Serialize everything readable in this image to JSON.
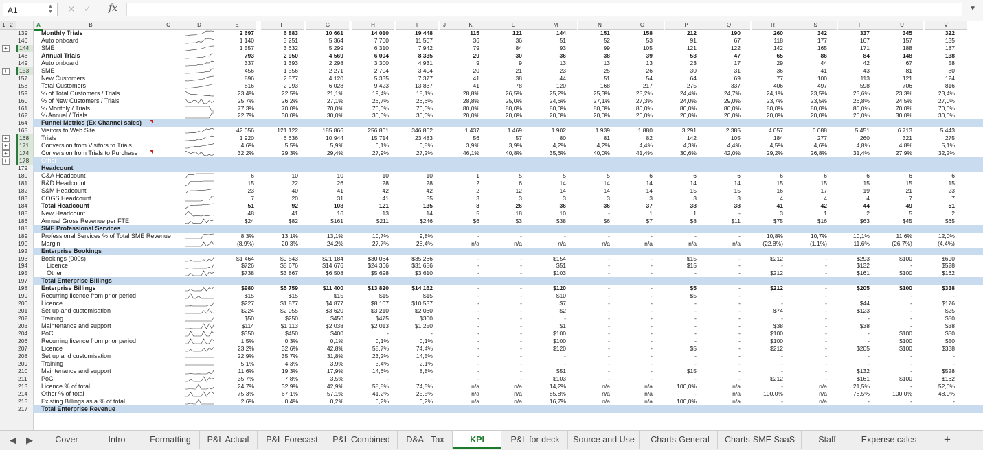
{
  "formula_bar": {
    "cell_ref": "A1",
    "fx": "fx",
    "value": ""
  },
  "outline_levels": [
    "1",
    "2"
  ],
  "columns": [
    "A",
    "B",
    "C",
    "D",
    "E",
    "F",
    "G",
    "H",
    "I",
    "J",
    "K",
    "L",
    "M",
    "N",
    "O",
    "P",
    "Q",
    "R",
    "S",
    "T",
    "U",
    "V"
  ],
  "rows": [
    {
      "n": "139",
      "label": "Monthly Trials",
      "style": "bold",
      "vals": [
        "2 697",
        "6 883",
        "10 661",
        "14 010",
        "19 448",
        "115",
        "121",
        "144",
        "151",
        "158",
        "212",
        "190",
        "260",
        "342",
        "337",
        "345",
        "322"
      ]
    },
    {
      "n": "140",
      "label": "Auto onboard",
      "vals": [
        "1 140",
        "3 251",
        "5 364",
        "7 700",
        "11 507",
        "36",
        "36",
        "51",
        "52",
        "53",
        "91",
        "67",
        "118",
        "177",
        "167",
        "157",
        "135"
      ]
    },
    {
      "n": "144",
      "label": "SME",
      "sel": true,
      "vals": [
        "1 557",
        "3 632",
        "5 299",
        "6 310",
        "7 942",
        "79",
        "84",
        "93",
        "99",
        "105",
        "121",
        "122",
        "142",
        "165",
        "171",
        "188",
        "187"
      ]
    },
    {
      "n": "148",
      "label": "Annual Trials",
      "style": "bold",
      "vals": [
        "793",
        "2 950",
        "4 569",
        "6 004",
        "8 335",
        "29",
        "30",
        "36",
        "38",
        "39",
        "53",
        "47",
        "65",
        "86",
        "84",
        "148",
        "138"
      ]
    },
    {
      "n": "149",
      "label": "Auto onboard",
      "vals": [
        "337",
        "1 393",
        "2 298",
        "3 300",
        "4 931",
        "9",
        "9",
        "13",
        "13",
        "13",
        "23",
        "17",
        "29",
        "44",
        "42",
        "67",
        "58"
      ]
    },
    {
      "n": "153",
      "label": "SME",
      "sel": true,
      "vals": [
        "456",
        "1 556",
        "2 271",
        "2 704",
        "3 404",
        "20",
        "21",
        "23",
        "25",
        "26",
        "30",
        "31",
        "36",
        "41",
        "43",
        "81",
        "80"
      ]
    },
    {
      "n": "157",
      "label": "New Customers",
      "vals": [
        "896",
        "2 577",
        "4 120",
        "5 335",
        "7 377",
        "41",
        "38",
        "44",
        "51",
        "54",
        "64",
        "69",
        "77",
        "100",
        "113",
        "121",
        "124"
      ]
    },
    {
      "n": "158",
      "label": "Total Customers",
      "vals": [
        "816",
        "2 993",
        "6 028",
        "9 423",
        "13 837",
        "41",
        "78",
        "120",
        "168",
        "217",
        "275",
        "337",
        "406",
        "497",
        "598",
        "706",
        "816"
      ]
    },
    {
      "n": "159",
      "label": "% of Total Customers / Trials",
      "vals": [
        "23,4%",
        "22,5%",
        "21,1%",
        "19,4%",
        "18,1%",
        "28,8%",
        "26,5%",
        "25,2%",
        "25,3%",
        "25,2%",
        "24,4%",
        "24,7%",
        "24,1%",
        "23,5%",
        "23,6%",
        "23,3%",
        "23,4%"
      ]
    },
    {
      "n": "160",
      "label": "% of New Customers / Trials",
      "vals": [
        "25,7%",
        "26,2%",
        "27,1%",
        "26,7%",
        "26,6%",
        "28,8%",
        "25,0%",
        "24,6%",
        "27,1%",
        "27,3%",
        "24,0%",
        "29,0%",
        "23,7%",
        "23,5%",
        "26,8%",
        "24,5%",
        "27,0%"
      ]
    },
    {
      "n": "161",
      "label": "% Monthly / Trials",
      "vals": [
        "77,3%",
        "70,0%",
        "70,0%",
        "70,0%",
        "70,0%",
        "80,0%",
        "80,0%",
        "80,0%",
        "80,0%",
        "80,0%",
        "80,0%",
        "80,0%",
        "80,0%",
        "80,0%",
        "80,0%",
        "70,0%",
        "70,0%"
      ]
    },
    {
      "n": "162",
      "label": "% Annual / Trials",
      "vals": [
        "22,7%",
        "30,0%",
        "30,0%",
        "30,0%",
        "30,0%",
        "20,0%",
        "20,0%",
        "20,0%",
        "20,0%",
        "20,0%",
        "20,0%",
        "20,0%",
        "20,0%",
        "20,0%",
        "20,0%",
        "30,0%",
        "30,0%"
      ]
    },
    {
      "n": "164",
      "label": "Funnel Metrics (Ex Channel sales)",
      "style": "hdr",
      "tri": true,
      "vals": []
    },
    {
      "n": "165",
      "label": "Visitors to Web Site",
      "vals": [
        "42 056",
        "121 122",
        "185 866",
        "256 801",
        "346 862",
        "1 437",
        "1 469",
        "1 902",
        "1 939",
        "1 880",
        "3 291",
        "2 385",
        "4 057",
        "6 088",
        "5 451",
        "6 713",
        "5 443"
      ]
    },
    {
      "n": "168",
      "label": "Trials",
      "sel": true,
      "vals": [
        "1 920",
        "6 636",
        "10 944",
        "15 714",
        "23 483",
        "56",
        "57",
        "80",
        "81",
        "82",
        "142",
        "105",
        "184",
        "277",
        "260",
        "321",
        "275"
      ]
    },
    {
      "n": "171",
      "label": "Conversion from Visitors to Trials",
      "sel": true,
      "vals": [
        "4,6%",
        "5,5%",
        "5,9%",
        "6,1%",
        "6,8%",
        "3,9%",
        "3,9%",
        "4,2%",
        "4,2%",
        "4,4%",
        "4,3%",
        "4,4%",
        "4,5%",
        "4,6%",
        "4,8%",
        "4,8%",
        "5,1%"
      ]
    },
    {
      "n": "174",
      "label": "Conversion from Trials to Purchase",
      "sel": true,
      "tri": true,
      "vals": [
        "32,2%",
        "29,3%",
        "29,4%",
        "27,9%",
        "27,2%",
        "46,1%",
        "40,8%",
        "35,6%",
        "40,0%",
        "41,4%",
        "30,6%",
        "42,0%",
        "29,2%",
        "26,8%",
        "31,4%",
        "27,9%",
        "32,2%"
      ]
    },
    {
      "n": "178",
      "label": "Other",
      "style": "sub",
      "sel": true,
      "vals": []
    },
    {
      "n": "179",
      "label": "Headcount",
      "style": "hdr",
      "vals": []
    },
    {
      "n": "180",
      "label": "G&A Headcount",
      "vals": [
        "6",
        "10",
        "10",
        "10",
        "10",
        "1",
        "5",
        "5",
        "5",
        "6",
        "6",
        "6",
        "6",
        "6",
        "6",
        "6",
        "6"
      ]
    },
    {
      "n": "181",
      "label": "R&D Headcount",
      "vals": [
        "15",
        "22",
        "26",
        "28",
        "28",
        "2",
        "6",
        "14",
        "14",
        "14",
        "14",
        "14",
        "15",
        "15",
        "15",
        "15",
        "15"
      ]
    },
    {
      "n": "182",
      "label": "S&M Headcount",
      "vals": [
        "23",
        "40",
        "41",
        "42",
        "42",
        "2",
        "12",
        "14",
        "14",
        "14",
        "15",
        "15",
        "16",
        "17",
        "19",
        "21",
        "23"
      ]
    },
    {
      "n": "183",
      "label": "COGS Headcount",
      "vals": [
        "7",
        "20",
        "31",
        "41",
        "55",
        "3",
        "3",
        "3",
        "3",
        "3",
        "3",
        "3",
        "4",
        "4",
        "4",
        "7",
        "7"
      ]
    },
    {
      "n": "184",
      "label": "Total Headcount",
      "style": "bold",
      "vals": [
        "51",
        "92",
        "108",
        "121",
        "135",
        "8",
        "26",
        "36",
        "36",
        "37",
        "38",
        "38",
        "41",
        "42",
        "44",
        "49",
        "51"
      ]
    },
    {
      "n": "185",
      "label": "New Headcount",
      "vals": [
        "48",
        "41",
        "16",
        "13",
        "14",
        "5",
        "18",
        "10",
        "-",
        "1",
        "1",
        "-",
        "3",
        "1",
        "2",
        "5",
        "2"
      ]
    },
    {
      "n": "186",
      "label": "Annual Gross Revenue per FTE",
      "vals": [
        "$24",
        "$82",
        "$161",
        "$211",
        "$246",
        "$6",
        "$3",
        "$38",
        "$6",
        "$7",
        "$8",
        "$11",
        "$75",
        "$16",
        "$63",
        "$45",
        "$65"
      ]
    },
    {
      "n": "188",
      "label": "SME Professional Services",
      "style": "hdr",
      "vals": []
    },
    {
      "n": "189",
      "label": "Professional Services % of Total SME Revenue",
      "vals": [
        "8,3%",
        "13,1%",
        "13,1%",
        "10,7%",
        "9,8%",
        "-",
        "-",
        "-",
        "-",
        "-",
        "-",
        "-",
        "10,8%",
        "10,7%",
        "10,1%",
        "11,6%",
        "12,0%"
      ]
    },
    {
      "n": "190",
      "label": "Margin",
      "vals": [
        "(8,9%)",
        "20,3%",
        "24,2%",
        "27,7%",
        "28,4%",
        "n/a",
        "n/a",
        "n/a",
        "n/a",
        "n/a",
        "n/a",
        "n/a",
        "(22,8%)",
        "(1,1%)",
        "11,6%",
        "(26,7%)",
        "(4,4%)"
      ]
    },
    {
      "n": "192",
      "label": "Enterprise Bookings",
      "style": "hdr",
      "vals": []
    },
    {
      "n": "193",
      "label": "Bookings (000s)",
      "vals": [
        "$1 464",
        "$9 543",
        "$21 184",
        "$30 064",
        "$35 266",
        "-",
        "-",
        "$154",
        "-",
        "-",
        "$15",
        "-",
        "$212",
        "-",
        "$293",
        "$100",
        "$690"
      ]
    },
    {
      "n": "194",
      "label": "Licence",
      "ind": true,
      "vals": [
        "$726",
        "$5 676",
        "$14 676",
        "$24 366",
        "$31 656",
        "-",
        "-",
        "$51",
        "-",
        "-",
        "$15",
        "-",
        "-",
        "-",
        "$132",
        "-",
        "$528"
      ]
    },
    {
      "n": "195",
      "label": "Other",
      "ind": true,
      "vals": [
        "$738",
        "$3 867",
        "$6 508",
        "$5 698",
        "$3 610",
        "-",
        "-",
        "$103",
        "-",
        "-",
        "-",
        "-",
        "$212",
        "-",
        "$161",
        "$100",
        "$162"
      ]
    },
    {
      "n": "197",
      "label": "Total Enterprise Billings",
      "style": "hdr",
      "vals": []
    },
    {
      "n": "198",
      "label": "Enterprise Billings",
      "style": "bold",
      "vals": [
        "$980",
        "$5 759",
        "$11 400",
        "$13 820",
        "$14 162",
        "-",
        "-",
        "$120",
        "-",
        "-",
        "$5",
        "-",
        "$212",
        "-",
        "$205",
        "$100",
        "$338"
      ]
    },
    {
      "n": "199",
      "label": "Recurring licence from prior period",
      "vals": [
        "$15",
        "$15",
        "$15",
        "$15",
        "$15",
        "-",
        "-",
        "$10",
        "-",
        "-",
        "$5",
        "-",
        "-",
        "-",
        "-",
        "-",
        "-"
      ]
    },
    {
      "n": "200",
      "label": "Licence",
      "vals": [
        "$227",
        "$1 877",
        "$4 877",
        "$8 107",
        "$10 537",
        "-",
        "-",
        "$7",
        "-",
        "-",
        "-",
        "-",
        "-",
        "-",
        "$44",
        "-",
        "$176"
      ]
    },
    {
      "n": "201",
      "label": "Set up and customisation",
      "vals": [
        "$224",
        "$2 055",
        "$3 620",
        "$3 210",
        "$2 060",
        "-",
        "-",
        "$2",
        "-",
        "-",
        "-",
        "-",
        "$74",
        "-",
        "$123",
        "-",
        "$25"
      ]
    },
    {
      "n": "202",
      "label": "Training",
      "vals": [
        "$50",
        "$250",
        "$450",
        "$475",
        "$300",
        "-",
        "-",
        "-",
        "-",
        "-",
        "-",
        "-",
        "-",
        "-",
        "-",
        "-",
        "$50"
      ]
    },
    {
      "n": "203",
      "label": "Maintenance and support",
      "vals": [
        "$114",
        "$1 113",
        "$2 038",
        "$2 013",
        "$1 250",
        "-",
        "-",
        "$1",
        "-",
        "-",
        "-",
        "-",
        "$38",
        "-",
        "$38",
        "-",
        "$38"
      ]
    },
    {
      "n": "204",
      "label": "PoC",
      "vals": [
        "$350",
        "$450",
        "$400",
        "-",
        "-",
        "-",
        "-",
        "$100",
        "-",
        "-",
        "-",
        "-",
        "$100",
        "-",
        "-",
        "$100",
        "$50"
      ]
    },
    {
      "n": "206",
      "label": "Recurring licence from prior period",
      "vals": [
        "1,5%",
        "0,3%",
        "0,1%",
        "0,1%",
        "0,1%",
        "-",
        "-",
        "$100",
        "-",
        "-",
        "-",
        "-",
        "$100",
        "-",
        "-",
        "$100",
        "$50"
      ]
    },
    {
      "n": "207",
      "label": "Licence",
      "vals": [
        "23,2%",
        "32,6%",
        "42,8%",
        "58,7%",
        "74,4%",
        "-",
        "-",
        "$120",
        "-",
        "-",
        "$5",
        "-",
        "$212",
        "-",
        "$205",
        "$100",
        "$338"
      ]
    },
    {
      "n": "208",
      "label": "Set up and customisation",
      "vals": [
        "22,9%",
        "35,7%",
        "31,8%",
        "23,2%",
        "14,5%",
        "-",
        "-",
        "-",
        "-",
        "-",
        "-",
        "-",
        "-",
        "-",
        "-",
        "-",
        "-"
      ]
    },
    {
      "n": "209",
      "label": "Training",
      "vals": [
        "5,1%",
        "4,3%",
        "3,9%",
        "3,4%",
        "2,1%",
        "-",
        "-",
        "-",
        "-",
        "-",
        "-",
        "-",
        "-",
        "-",
        "-",
        "-",
        "-"
      ]
    },
    {
      "n": "210",
      "label": "Maintenance and support",
      "vals": [
        "11,6%",
        "19,3%",
        "17,9%",
        "14,6%",
        "8,8%",
        "-",
        "-",
        "$51",
        "-",
        "-",
        "$15",
        "-",
        "-",
        "-",
        "$132",
        "-",
        "$528"
      ]
    },
    {
      "n": "211",
      "label": "PoC",
      "vals": [
        "35,7%",
        "7,8%",
        "3,5%",
        "-",
        "-",
        "-",
        "-",
        "$103",
        "-",
        "-",
        "-",
        "-",
        "$212",
        "-",
        "$161",
        "$100",
        "$162"
      ]
    },
    {
      "n": "213",
      "label": "Licence % of total",
      "vals": [
        "24,7%",
        "32,9%",
        "42,9%",
        "58,8%",
        "74,5%",
        "n/a",
        "n/a",
        "14,2%",
        "n/a",
        "n/a",
        "100,0%",
        "n/a",
        "-",
        "n/a",
        "21,5%",
        "-",
        "52,0%"
      ]
    },
    {
      "n": "214",
      "label": "Other % of total",
      "vals": [
        "75,3%",
        "67,1%",
        "57,1%",
        "41,2%",
        "25,5%",
        "n/a",
        "n/a",
        "85,8%",
        "n/a",
        "n/a",
        "-",
        "n/a",
        "100,0%",
        "n/a",
        "78,5%",
        "100,0%",
        "48,0%"
      ]
    },
    {
      "n": "215",
      "label": "Existing Billings as a % of total",
      "vals": [
        "2,6%",
        "0,4%",
        "0,2%",
        "0,2%",
        "0,2%",
        "n/a",
        "n/a",
        "16,7%",
        "n/a",
        "n/a",
        "100,0%",
        "n/a",
        "-",
        "n/a",
        "-",
        "-",
        "-"
      ]
    },
    {
      "n": "217",
      "label": "Total Enterprise Revenue",
      "style": "hdr",
      "vals": []
    }
  ],
  "tabs": [
    "Cover",
    "Intro",
    "Formatting",
    "P&L Actual",
    "P&L Forecast",
    "P&L Combined",
    "D&A - Tax",
    "KPI",
    "P&L for deck",
    "Source and Use",
    "Charts-General",
    "Charts-SME SaaS",
    "Staff",
    "Expense calcs"
  ],
  "active_tab": "KPI",
  "colors": {
    "section_header": "#c9dcef",
    "active_tab": "#1b7a2c",
    "comment_marker": "#cc1d1d"
  }
}
